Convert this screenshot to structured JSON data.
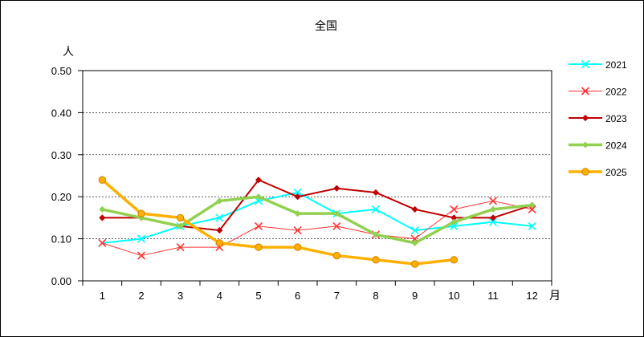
{
  "chart_data": {
    "type": "line",
    "title": "全国",
    "ylabel": "人",
    "xlabel": "月",
    "categories": [
      "1",
      "2",
      "3",
      "4",
      "5",
      "6",
      "7",
      "8",
      "9",
      "10",
      "11",
      "12"
    ],
    "ylim": [
      0,
      0.5
    ],
    "yticks": [
      "0.00",
      "0.10",
      "0.20",
      "0.30",
      "0.40",
      "0.50"
    ],
    "grid": "horizontal dashed",
    "legend_position": "right",
    "series": [
      {
        "name": "2021",
        "color": "#00FFFF",
        "marker": "x",
        "width": 2,
        "values": [
          0.09,
          0.1,
          0.13,
          0.15,
          0.19,
          0.21,
          0.16,
          0.17,
          0.12,
          0.13,
          0.14,
          0.13
        ]
      },
      {
        "name": "2022",
        "color": "#FF3333",
        "marker": "x",
        "width": 1,
        "values": [
          0.09,
          0.06,
          0.08,
          0.08,
          0.13,
          0.12,
          0.13,
          0.11,
          0.1,
          0.17,
          0.19,
          0.17
        ]
      },
      {
        "name": "2023",
        "color": "#C00000",
        "marker": "diamond",
        "width": 2,
        "values": [
          0.15,
          0.15,
          0.13,
          0.12,
          0.24,
          0.2,
          0.22,
          0.21,
          0.17,
          0.15,
          0.15,
          0.18
        ]
      },
      {
        "name": "2024",
        "color": "#92D050",
        "marker": "diamond",
        "width": 3.5,
        "values": [
          0.17,
          0.15,
          0.13,
          0.19,
          0.2,
          0.16,
          0.16,
          0.11,
          0.09,
          0.14,
          0.17,
          0.18
        ]
      },
      {
        "name": "2025",
        "color": "#FFB000",
        "marker": "circle",
        "width": 3.5,
        "values": [
          0.24,
          0.16,
          0.15,
          0.09,
          0.08,
          0.08,
          0.06,
          0.05,
          0.04,
          0.05,
          null,
          null
        ]
      }
    ]
  }
}
